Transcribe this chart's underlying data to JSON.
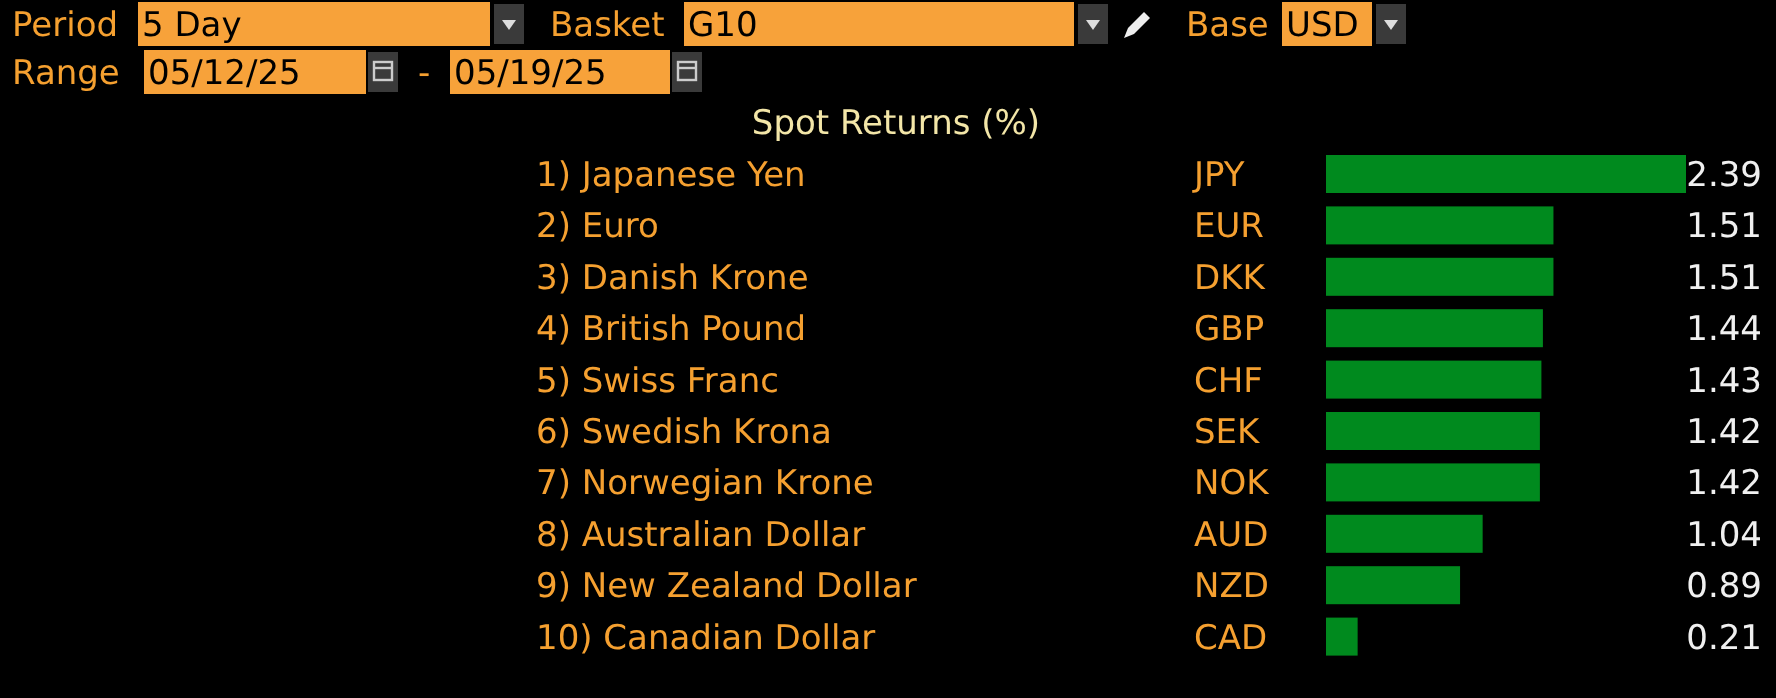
{
  "chart_data": {
    "type": "bar",
    "orientation": "horizontal",
    "title": "Spot Returns (%)",
    "categories": [
      "1) Japanese Yen",
      "2) Euro",
      "3) Danish Krone",
      "4) British Pound",
      "5) Swiss Franc",
      "6) Swedish Krona",
      "7) Norwegian Krone",
      "8) Australian Dollar",
      "9) New Zealand Dollar",
      "10) Canadian Dollar"
    ],
    "values": [
      2.39,
      1.51,
      1.51,
      1.44,
      1.43,
      1.42,
      1.42,
      1.04,
      0.89,
      0.21
    ],
    "color": "#008a1e",
    "data_labels": true,
    "annotations": [
      "Period",
      "5 Day",
      "Basket",
      "G10",
      "Base",
      "USD",
      "Range",
      "05/12/25",
      "-",
      "05/19/25",
      "JPY",
      "EUR",
      "DKK",
      "GBP",
      "CHF",
      "SEK",
      "NOK",
      "AUD",
      "NZD",
      "CAD"
    ]
  }
}
